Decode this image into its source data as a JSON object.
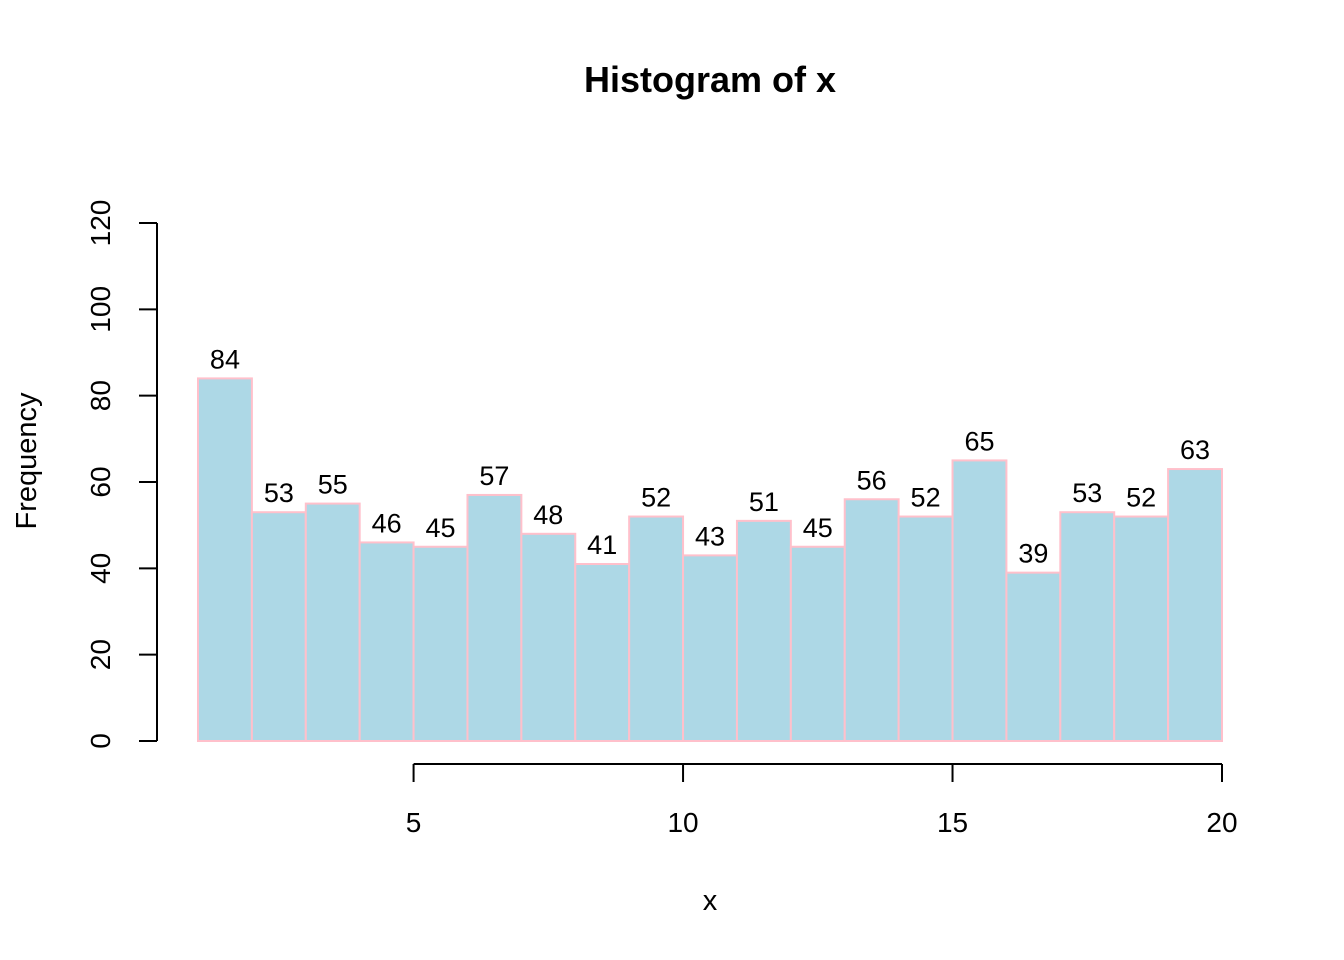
{
  "chart_data": {
    "type": "bar",
    "title": "Histogram of x",
    "xlabel": "x",
    "ylabel": "Frequency",
    "bin_edges": [
      1,
      2,
      3,
      4,
      5,
      6,
      7,
      8,
      9,
      10,
      11,
      12,
      13,
      14,
      15,
      16,
      17,
      18,
      19,
      20
    ],
    "values": [
      84,
      53,
      55,
      46,
      45,
      57,
      48,
      41,
      52,
      43,
      51,
      45,
      56,
      52,
      65,
      39,
      53,
      52,
      63
    ],
    "xlim": [
      1,
      20
    ],
    "ylim": [
      0,
      120
    ],
    "x_ticks": [
      5,
      10,
      15,
      20
    ],
    "x_tick_labels": [
      "5",
      "10",
      "15",
      "20"
    ],
    "y_ticks": [
      0,
      20,
      40,
      60,
      80,
      100,
      120
    ],
    "y_tick_labels": [
      "0",
      "20",
      "40",
      "60",
      "80",
      "100",
      "120"
    ],
    "bar_fill_color": "#add8e6",
    "bar_border_color": "#ffc0cb",
    "data_labels_shown": true,
    "grid": false
  }
}
